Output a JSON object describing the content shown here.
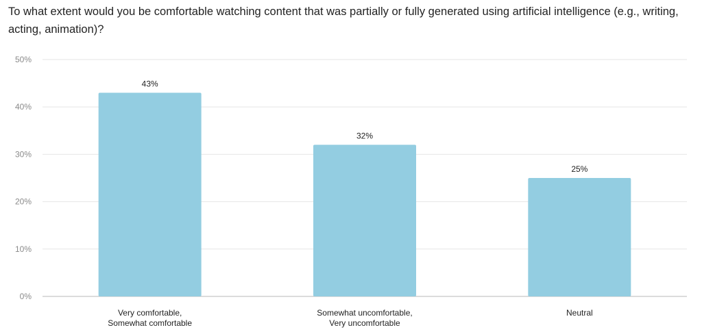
{
  "chart_data": {
    "type": "bar",
    "title": "To what extent would you be comfortable watching content that was partially or fully generated using artificial intelligence (e.g., writing, acting, animation)?",
    "categories": [
      [
        "Very comfortable,",
        "Somewhat comfortable"
      ],
      [
        "Somewhat uncomfortable,",
        "Very uncomfortable"
      ],
      [
        "Neutral"
      ]
    ],
    "values": [
      43,
      32,
      25
    ],
    "value_labels": [
      "43%",
      "32%",
      "25%"
    ],
    "y_ticks": [
      0,
      10,
      20,
      30,
      40,
      50
    ],
    "y_tick_labels": [
      "0%",
      "10%",
      "20%",
      "30%",
      "40%",
      "50%"
    ],
    "ylim": [
      0,
      50
    ],
    "xlabel": "",
    "ylabel": "",
    "grid": true,
    "legend": "none",
    "bar_color": "#93cde1"
  }
}
